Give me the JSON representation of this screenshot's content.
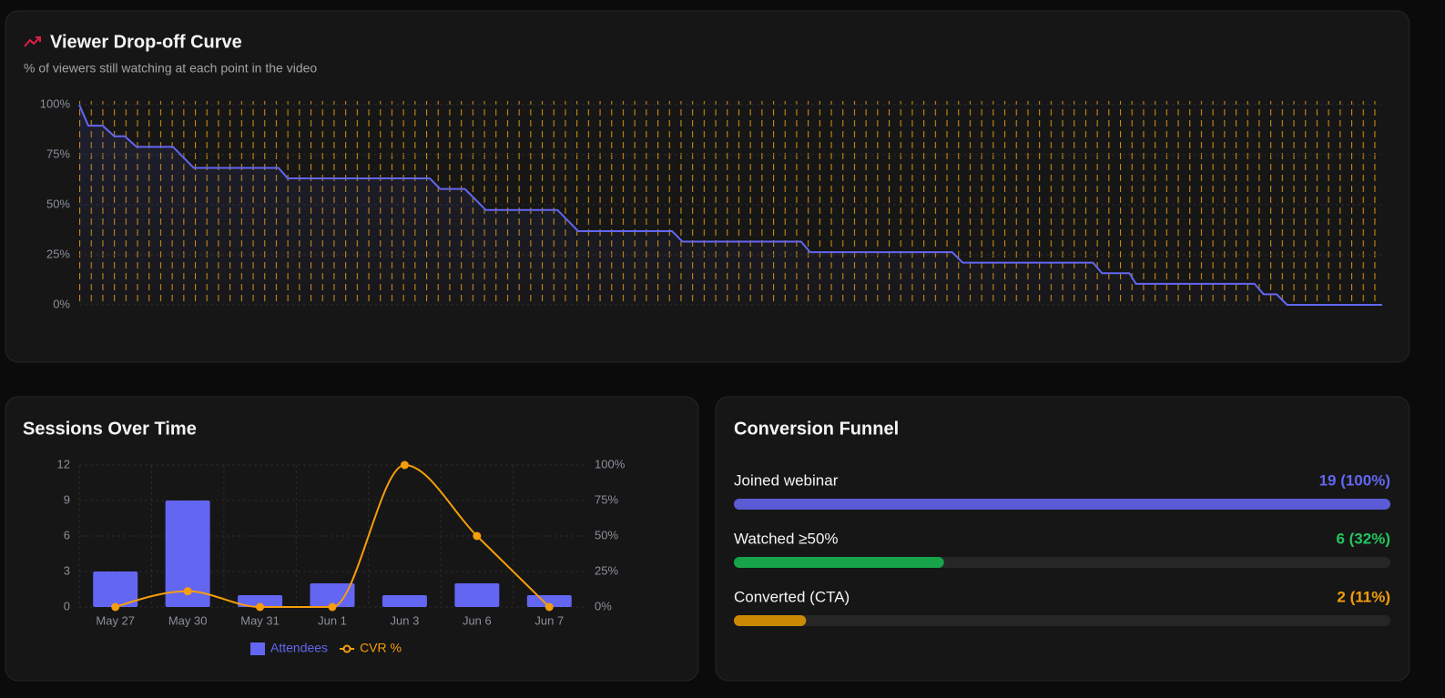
{
  "chart_data": [
    {
      "type": "line",
      "title": "Viewer Drop-off Curve",
      "subtitle": "% of viewers still watching at each point in the video",
      "x": [
        0,
        0.7,
        1.8,
        2.7,
        3.5,
        4.4,
        7.2,
        8.8,
        15.3,
        16.0,
        26.9,
        27.7,
        29.6,
        31.2,
        36.7,
        38.3,
        45.5,
        46.3,
        55.4,
        56.1,
        67.0,
        67.8,
        77.8,
        78.5,
        80.6,
        81.1,
        90.2,
        90.9,
        91.9,
        92.7,
        100
      ],
      "values": [
        100,
        89.5,
        89.5,
        84.2,
        84.2,
        78.9,
        78.9,
        68.4,
        68.4,
        63.2,
        63.2,
        57.9,
        57.9,
        47.4,
        47.4,
        36.8,
        36.8,
        31.6,
        31.6,
        26.3,
        26.3,
        21.1,
        21.1,
        15.8,
        15.8,
        10.5,
        10.5,
        5.3,
        5.3,
        0,
        0
      ],
      "color": "#6366f1",
      "xlim": [
        0,
        100
      ],
      "ylim": [
        0,
        100
      ],
      "yticks": [
        {
          "value": 0,
          "label": "0%"
        },
        {
          "value": 25,
          "label": "25%"
        },
        {
          "value": 50,
          "label": "50%"
        },
        {
          "value": 75,
          "label": "75%"
        },
        {
          "value": 100,
          "label": "100%"
        }
      ],
      "grid": true
    },
    {
      "type": "bar",
      "title": "Sessions Over Time",
      "categories": [
        "May 27",
        "May 30",
        "May 31",
        "Jun 1",
        "Jun 3",
        "Jun 6",
        "Jun 7"
      ],
      "series": [
        {
          "name": "Attendees",
          "color": "#6366f1",
          "values": [
            3,
            9,
            1,
            2,
            1,
            2,
            1
          ]
        },
        {
          "name": "CVR %",
          "color": "#f59e0b",
          "values": [
            0,
            11.1,
            0,
            0,
            100,
            50,
            0
          ],
          "axis": "y2",
          "type": "line"
        }
      ],
      "ylim": [
        0,
        12
      ],
      "yticks": [
        0,
        3,
        6,
        9,
        12
      ],
      "y2lim": [
        0,
        100
      ],
      "y2ticks": [
        {
          "value": 0,
          "label": "0%"
        },
        {
          "value": 25,
          "label": "25%"
        },
        {
          "value": 50,
          "label": "50%"
        },
        {
          "value": 75,
          "label": "75%"
        },
        {
          "value": 100,
          "label": "100%"
        }
      ],
      "grid": true
    },
    {
      "type": "funnel",
      "title": "Conversion Funnel",
      "stages": [
        {
          "name": "Joined webinar",
          "value": 100,
          "value_label": "19 (100%)",
          "color": "#5b5bd6",
          "label_color": "#6366f1"
        },
        {
          "name": "Watched ≥50%",
          "value": 32,
          "value_label": "6 (32%)",
          "color": "#16a34a",
          "label_color": "#22c55e"
        },
        {
          "name": "Converted (CTA)",
          "value": 11,
          "value_label": "2 (11%)",
          "color": "#ca8a04",
          "label_color": "#f59e0b"
        }
      ]
    }
  ]
}
